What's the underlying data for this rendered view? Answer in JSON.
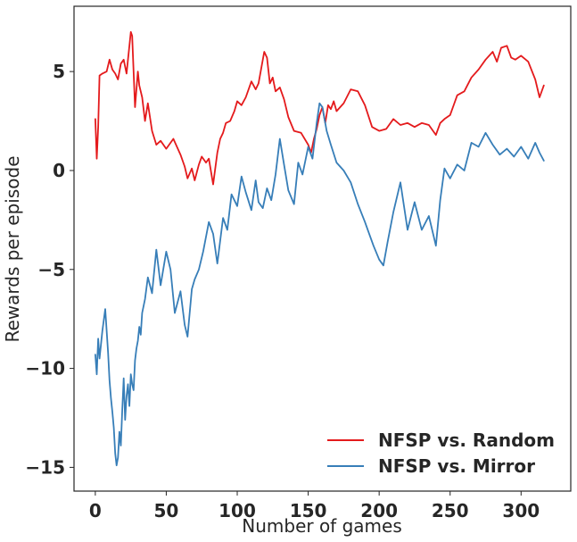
{
  "chart_data": {
    "type": "line",
    "title": "",
    "xlabel": "Number of games",
    "ylabel": "Rewards per episode",
    "xlim": [
      -15,
      335
    ],
    "ylim": [
      -16.2,
      8.3
    ],
    "xticks": [
      0,
      50,
      100,
      150,
      200,
      250,
      300
    ],
    "yticks": [
      5,
      0,
      -5,
      -10,
      -15
    ],
    "ytick_labels": [
      "5",
      "0",
      "−5",
      "−10",
      "−15"
    ],
    "grid": false,
    "legend_position": "bottom-right",
    "series": [
      {
        "name": "NFSP vs. Random",
        "color": "#e41a1c",
        "x": [
          0,
          1,
          2,
          3,
          5,
          8,
          10,
          12,
          14,
          16,
          18,
          20,
          22,
          24,
          25,
          26,
          28,
          30,
          31,
          33,
          35,
          37,
          40,
          43,
          46,
          50,
          55,
          60,
          63,
          65,
          68,
          70,
          73,
          75,
          78,
          80,
          83,
          86,
          88,
          90,
          92,
          95,
          98,
          100,
          103,
          106,
          110,
          113,
          115,
          117,
          119,
          121,
          123,
          125,
          127,
          130,
          133,
          136,
          140,
          145,
          150,
          152,
          154,
          156,
          158,
          160,
          162,
          164,
          166,
          168,
          170,
          175,
          180,
          185,
          190,
          195,
          200,
          205,
          210,
          215,
          220,
          225,
          230,
          235,
          240,
          243,
          246,
          250,
          255,
          260,
          265,
          270,
          275,
          280,
          283,
          286,
          290,
          293,
          296,
          300,
          305,
          310,
          313,
          316
        ],
        "y": [
          2.6,
          0.6,
          2.2,
          4.8,
          4.9,
          5.0,
          5.6,
          5.1,
          4.9,
          4.6,
          5.4,
          5.6,
          4.9,
          6.3,
          7.0,
          6.8,
          3.2,
          5.0,
          4.3,
          3.7,
          2.5,
          3.4,
          2.0,
          1.3,
          1.5,
          1.1,
          1.6,
          0.8,
          0.2,
          -0.4,
          0.1,
          -0.5,
          0.3,
          0.7,
          0.4,
          0.6,
          -0.7,
          0.9,
          1.6,
          1.9,
          2.4,
          2.5,
          3.0,
          3.5,
          3.3,
          3.7,
          4.5,
          4.1,
          4.4,
          5.2,
          6.0,
          5.7,
          4.4,
          4.7,
          4.0,
          4.2,
          3.6,
          2.7,
          2.0,
          1.9,
          1.3,
          0.9,
          1.6,
          2.1,
          2.8,
          3.2,
          2.4,
          3.3,
          3.1,
          3.5,
          3.0,
          3.4,
          4.1,
          4.0,
          3.3,
          2.2,
          2.0,
          2.1,
          2.6,
          2.3,
          2.4,
          2.2,
          2.4,
          2.3,
          1.8,
          2.4,
          2.6,
          2.8,
          3.8,
          4.0,
          4.7,
          5.1,
          5.6,
          6.0,
          5.5,
          6.2,
          6.3,
          5.7,
          5.6,
          5.8,
          5.5,
          4.6,
          3.7,
          4.3
        ]
      },
      {
        "name": "NFSP vs. Mirror",
        "color": "#377eb8",
        "x": [
          0,
          1,
          2,
          3,
          5,
          7,
          9,
          10,
          11,
          12,
          13,
          14,
          15,
          16,
          17,
          18,
          19,
          20,
          21,
          22,
          23,
          24,
          25,
          26,
          27,
          28,
          29,
          30,
          31,
          32,
          33,
          35,
          37,
          40,
          43,
          46,
          50,
          53,
          56,
          60,
          63,
          65,
          68,
          70,
          73,
          76,
          80,
          83,
          86,
          90,
          93,
          96,
          100,
          103,
          106,
          110,
          113,
          115,
          118,
          121,
          124,
          127,
          130,
          133,
          136,
          140,
          143,
          146,
          150,
          153,
          156,
          158,
          160,
          163,
          166,
          170,
          175,
          180,
          185,
          190,
          193,
          196,
          200,
          203,
          206,
          210,
          215,
          220,
          225,
          230,
          235,
          240,
          243,
          246,
          250,
          255,
          260,
          265,
          270,
          275,
          280,
          285,
          290,
          295,
          300,
          305,
          310,
          313,
          316
        ],
        "y": [
          -9.3,
          -10.3,
          -8.5,
          -9.5,
          -8.1,
          -7.0,
          -9.2,
          -10.6,
          -11.5,
          -12.2,
          -13.0,
          -14.3,
          -14.9,
          -14.5,
          -13.2,
          -13.9,
          -12.1,
          -10.5,
          -12.6,
          -11.4,
          -10.8,
          -11.9,
          -10.3,
          -10.8,
          -11.1,
          -9.6,
          -9.0,
          -8.6,
          -7.9,
          -8.3,
          -7.2,
          -6.5,
          -5.4,
          -6.2,
          -4.0,
          -5.8,
          -4.1,
          -5.0,
          -7.2,
          -6.1,
          -7.8,
          -8.4,
          -6.0,
          -5.5,
          -5.0,
          -4.1,
          -2.6,
          -3.2,
          -4.7,
          -2.4,
          -3.0,
          -1.2,
          -1.8,
          -0.3,
          -1.1,
          -2.0,
          -0.5,
          -1.6,
          -1.9,
          -0.9,
          -1.5,
          -0.2,
          1.6,
          0.3,
          -1.0,
          -1.7,
          0.4,
          -0.2,
          1.2,
          0.6,
          2.4,
          3.4,
          3.2,
          2.0,
          1.3,
          0.4,
          0.0,
          -0.6,
          -1.7,
          -2.6,
          -3.2,
          -3.8,
          -4.5,
          -4.8,
          -3.6,
          -2.1,
          -0.6,
          -3.0,
          -1.6,
          -3.0,
          -2.3,
          -3.8,
          -1.5,
          0.1,
          -0.4,
          0.3,
          0.0,
          1.4,
          1.2,
          1.9,
          1.3,
          0.8,
          1.1,
          0.7,
          1.2,
          0.6,
          1.4,
          0.9,
          0.5
        ]
      }
    ]
  }
}
